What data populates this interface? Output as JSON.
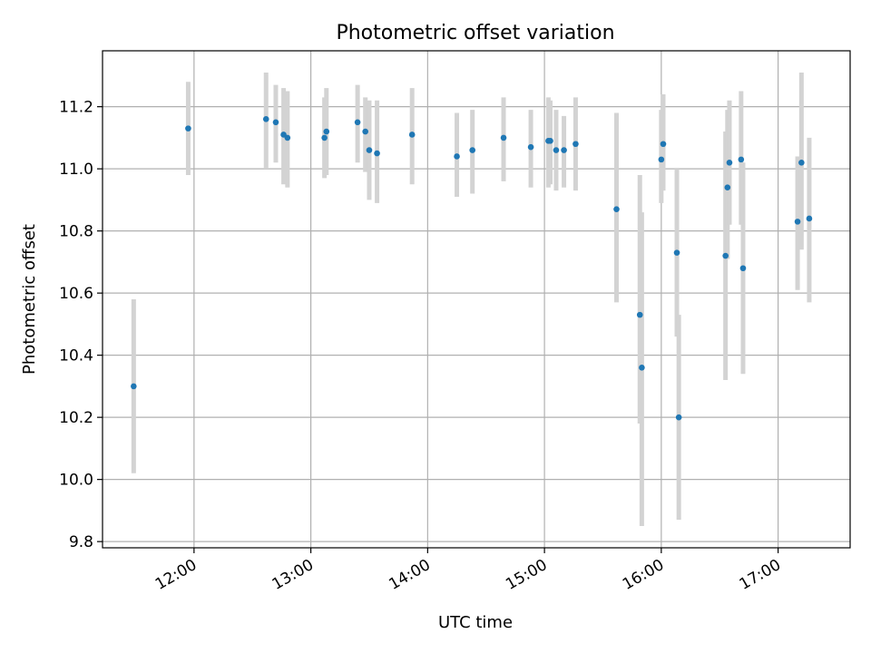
{
  "chart_data": {
    "type": "scatter",
    "title": "Photometric offset variation",
    "xlabel": "UTC time",
    "ylabel": "Photometric offset",
    "xlim": [
      "11:13",
      "17:37"
    ],
    "ylim": [
      9.78,
      11.38
    ],
    "x_ticks": [
      "12:00",
      "13:00",
      "14:00",
      "15:00",
      "16:00",
      "17:00"
    ],
    "y_ticks": [
      9.8,
      10.0,
      10.2,
      10.4,
      10.6,
      10.8,
      11.0,
      11.2
    ],
    "grid": true,
    "errorbar_color": "#d3d3d3",
    "marker_color": "#1f77b4",
    "points": [
      {
        "x": "11:29",
        "y": 10.3,
        "lo": 10.02,
        "hi": 10.58
      },
      {
        "x": "11:57",
        "y": 11.13,
        "lo": 10.98,
        "hi": 11.28
      },
      {
        "x": "12:37",
        "y": 11.16,
        "lo": 11.0,
        "hi": 11.31
      },
      {
        "x": "12:42",
        "y": 11.15,
        "lo": 11.02,
        "hi": 11.27
      },
      {
        "x": "12:46",
        "y": 11.11,
        "lo": 10.95,
        "hi": 11.26
      },
      {
        "x": "12:48",
        "y": 11.1,
        "lo": 10.94,
        "hi": 11.25
      },
      {
        "x": "13:07",
        "y": 11.1,
        "lo": 10.97,
        "hi": 11.23
      },
      {
        "x": "13:08",
        "y": 11.12,
        "lo": 10.98,
        "hi": 11.26
      },
      {
        "x": "13:24",
        "y": 11.15,
        "lo": 11.02,
        "hi": 11.27
      },
      {
        "x": "13:28",
        "y": 11.12,
        "lo": 10.99,
        "hi": 11.23
      },
      {
        "x": "13:30",
        "y": 11.06,
        "lo": 10.9,
        "hi": 11.22
      },
      {
        "x": "13:34",
        "y": 11.05,
        "lo": 10.89,
        "hi": 11.22
      },
      {
        "x": "13:52",
        "y": 11.11,
        "lo": 10.95,
        "hi": 11.26
      },
      {
        "x": "14:15",
        "y": 11.04,
        "lo": 10.91,
        "hi": 11.18
      },
      {
        "x": "14:23",
        "y": 11.06,
        "lo": 10.92,
        "hi": 11.19
      },
      {
        "x": "14:39",
        "y": 11.1,
        "lo": 10.96,
        "hi": 11.23
      },
      {
        "x": "14:53",
        "y": 11.07,
        "lo": 10.94,
        "hi": 11.19
      },
      {
        "x": "15:02",
        "y": 11.09,
        "lo": 10.94,
        "hi": 11.23
      },
      {
        "x": "15:03",
        "y": 11.09,
        "lo": 10.95,
        "hi": 11.22
      },
      {
        "x": "15:06",
        "y": 11.06,
        "lo": 10.93,
        "hi": 11.19
      },
      {
        "x": "15:10",
        "y": 11.06,
        "lo": 10.94,
        "hi": 11.17
      },
      {
        "x": "15:16",
        "y": 11.08,
        "lo": 10.93,
        "hi": 11.23
      },
      {
        "x": "15:37",
        "y": 10.87,
        "lo": 10.57,
        "hi": 11.18
      },
      {
        "x": "15:49",
        "y": 10.53,
        "lo": 10.18,
        "hi": 10.98
      },
      {
        "x": "15:50",
        "y": 10.36,
        "lo": 9.85,
        "hi": 10.86
      },
      {
        "x": "16:00",
        "y": 11.03,
        "lo": 10.89,
        "hi": 11.19
      },
      {
        "x": "16:01",
        "y": 11.08,
        "lo": 10.93,
        "hi": 11.24
      },
      {
        "x": "16:08",
        "y": 10.73,
        "lo": 10.46,
        "hi": 11.0
      },
      {
        "x": "16:09",
        "y": 10.2,
        "lo": 9.87,
        "hi": 10.53
      },
      {
        "x": "16:33",
        "y": 10.72,
        "lo": 10.32,
        "hi": 11.12
      },
      {
        "x": "16:34",
        "y": 10.94,
        "lo": 10.71,
        "hi": 11.19
      },
      {
        "x": "16:35",
        "y": 11.02,
        "lo": 10.82,
        "hi": 11.22
      },
      {
        "x": "16:41",
        "y": 11.03,
        "lo": 10.82,
        "hi": 11.25
      },
      {
        "x": "16:42",
        "y": 10.68,
        "lo": 10.34,
        "hi": 11.02
      },
      {
        "x": "17:10",
        "y": 10.83,
        "lo": 10.61,
        "hi": 11.04
      },
      {
        "x": "17:12",
        "y": 11.02,
        "lo": 10.74,
        "hi": 11.31
      },
      {
        "x": "17:16",
        "y": 10.84,
        "lo": 10.57,
        "hi": 11.1
      }
    ]
  }
}
